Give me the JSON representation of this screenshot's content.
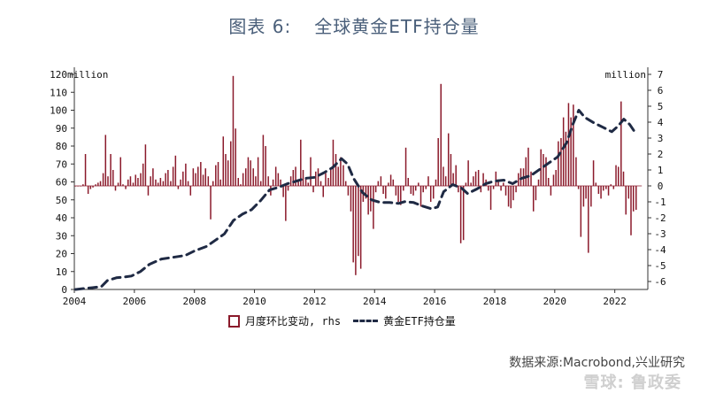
{
  "title_prefix": "图表 6:",
  "title_main": "全球黄金ETF持仓量",
  "left_unit": "million",
  "right_unit": "million",
  "legend": {
    "bar_label": "月度环比变动, rhs",
    "line_label": "黄金ETF持仓量"
  },
  "source": "数据来源:Macrobond,兴业研究",
  "watermark": "雪球: 鲁政委",
  "colors": {
    "bar": "#8b1a2b",
    "line": "#1f2a44",
    "title": "#4a5f7a"
  },
  "chart_data": {
    "type": "bar+line",
    "x_ticks": [
      "2004",
      "2006",
      "2008",
      "2010",
      "2012",
      "2014",
      "2016",
      "2018",
      "2020",
      "2022"
    ],
    "x_range": [
      2004,
      2023.1
    ],
    "left_axis": {
      "ticks": [
        0,
        10,
        20,
        30,
        40,
        50,
        60,
        70,
        80,
        90,
        100,
        110,
        120
      ],
      "range": [
        0,
        120
      ]
    },
    "right_axis": {
      "ticks": [
        -6,
        -5,
        -4,
        -3,
        -2,
        -1,
        0,
        1,
        2,
        3,
        4,
        5,
        6,
        7
      ],
      "range": [
        -6.5,
        7
      ]
    },
    "series": [
      {
        "name": "月度环比变动, rhs",
        "kind": "bar",
        "axis": "right",
        "points": [
          [
            2004.04,
            0.0
          ],
          [
            2004.12,
            0.0
          ],
          [
            2004.21,
            0.0
          ],
          [
            2004.29,
            0.1
          ],
          [
            2004.37,
            2.0
          ],
          [
            2004.46,
            -0.5
          ],
          [
            2004.54,
            -0.2
          ],
          [
            2004.62,
            -0.1
          ],
          [
            2004.71,
            0.1
          ],
          [
            2004.79,
            0.2
          ],
          [
            2004.87,
            0.3
          ],
          [
            2004.96,
            0.8
          ],
          [
            2005.04,
            3.2
          ],
          [
            2005.12,
            0.6
          ],
          [
            2005.21,
            2.0
          ],
          [
            2005.29,
            1.0
          ],
          [
            2005.37,
            -0.3
          ],
          [
            2005.46,
            0.2
          ],
          [
            2005.54,
            1.8
          ],
          [
            2005.62,
            0.1
          ],
          [
            2005.71,
            -0.2
          ],
          [
            2005.79,
            0.4
          ],
          [
            2005.87,
            0.6
          ],
          [
            2005.96,
            0.2
          ],
          [
            2006.04,
            0.7
          ],
          [
            2006.12,
            0.5
          ],
          [
            2006.21,
            0.8
          ],
          [
            2006.29,
            1.4
          ],
          [
            2006.37,
            2.6
          ],
          [
            2006.46,
            -0.6
          ],
          [
            2006.54,
            0.6
          ],
          [
            2006.62,
            1.1
          ],
          [
            2006.71,
            0.4
          ],
          [
            2006.79,
            0.2
          ],
          [
            2006.87,
            0.5
          ],
          [
            2006.96,
            0.3
          ],
          [
            2007.04,
            0.8
          ],
          [
            2007.12,
            1.0
          ],
          [
            2007.21,
            0.3
          ],
          [
            2007.29,
            1.2
          ],
          [
            2007.37,
            1.9
          ],
          [
            2007.46,
            -0.2
          ],
          [
            2007.54,
            0.4
          ],
          [
            2007.62,
            0.9
          ],
          [
            2007.71,
            1.4
          ],
          [
            2007.79,
            0.3
          ],
          [
            2007.87,
            -0.6
          ],
          [
            2007.96,
            1.1
          ],
          [
            2008.04,
            0.8
          ],
          [
            2008.12,
            1.2
          ],
          [
            2008.21,
            1.5
          ],
          [
            2008.29,
            0.7
          ],
          [
            2008.37,
            1.1
          ],
          [
            2008.46,
            0.6
          ],
          [
            2008.54,
            -2.1
          ],
          [
            2008.62,
            0.3
          ],
          [
            2008.71,
            1.3
          ],
          [
            2008.79,
            1.5
          ],
          [
            2008.87,
            0.4
          ],
          [
            2008.96,
            3.1
          ],
          [
            2009.04,
            2.0
          ],
          [
            2009.12,
            1.6
          ],
          [
            2009.21,
            2.8
          ],
          [
            2009.29,
            6.9
          ],
          [
            2009.37,
            3.6
          ],
          [
            2009.46,
            0.5
          ],
          [
            2009.54,
            0.1
          ],
          [
            2009.62,
            0.8
          ],
          [
            2009.71,
            1.1
          ],
          [
            2009.79,
            1.8
          ],
          [
            2009.87,
            1.6
          ],
          [
            2009.96,
            1.1
          ],
          [
            2010.04,
            0.6
          ],
          [
            2010.12,
            1.8
          ],
          [
            2010.21,
            0.3
          ],
          [
            2010.29,
            3.2
          ],
          [
            2010.37,
            2.5
          ],
          [
            2010.46,
            0.6
          ],
          [
            2010.54,
            -0.6
          ],
          [
            2010.62,
            0.4
          ],
          [
            2010.71,
            1.2
          ],
          [
            2010.79,
            0.8
          ],
          [
            2010.87,
            0.4
          ],
          [
            2010.96,
            -0.7
          ],
          [
            2011.04,
            -2.2
          ],
          [
            2011.12,
            -0.3
          ],
          [
            2011.21,
            0.6
          ],
          [
            2011.29,
            1.0
          ],
          [
            2011.37,
            1.2
          ],
          [
            2011.46,
            0.4
          ],
          [
            2011.54,
            2.9
          ],
          [
            2011.62,
            1.0
          ],
          [
            2011.71,
            0.5
          ],
          [
            2011.79,
            0.2
          ],
          [
            2011.87,
            1.8
          ],
          [
            2011.96,
            -0.4
          ],
          [
            2012.04,
            0.9
          ],
          [
            2012.12,
            1.1
          ],
          [
            2012.21,
            0.3
          ],
          [
            2012.29,
            -0.7
          ],
          [
            2012.37,
            0.8
          ],
          [
            2012.46,
            0.5
          ],
          [
            2012.54,
            1.0
          ],
          [
            2012.62,
            2.9
          ],
          [
            2012.71,
            2.0
          ],
          [
            2012.79,
            1.2
          ],
          [
            2012.87,
            1.8
          ],
          [
            2012.96,
            1.3
          ],
          [
            2013.04,
            0.3
          ],
          [
            2013.12,
            -0.6
          ],
          [
            2013.21,
            -1.6
          ],
          [
            2013.29,
            -4.8
          ],
          [
            2013.37,
            -5.6
          ],
          [
            2013.46,
            -4.4
          ],
          [
            2013.54,
            -5.2
          ],
          [
            2013.62,
            -1.0
          ],
          [
            2013.71,
            -0.8
          ],
          [
            2013.79,
            -1.8
          ],
          [
            2013.87,
            -1.6
          ],
          [
            2013.96,
            -2.7
          ],
          [
            2014.04,
            -0.4
          ],
          [
            2014.12,
            0.3
          ],
          [
            2014.21,
            0.6
          ],
          [
            2014.29,
            -0.5
          ],
          [
            2014.37,
            -0.8
          ],
          [
            2014.46,
            0.2
          ],
          [
            2014.54,
            0.7
          ],
          [
            2014.62,
            0.4
          ],
          [
            2014.71,
            -0.6
          ],
          [
            2014.79,
            -1.0
          ],
          [
            2014.87,
            -1.2
          ],
          [
            2014.96,
            -0.3
          ],
          [
            2015.04,
            2.4
          ],
          [
            2015.12,
            0.5
          ],
          [
            2015.21,
            -0.5
          ],
          [
            2015.29,
            -0.6
          ],
          [
            2015.37,
            -0.3
          ],
          [
            2015.46,
            0.2
          ],
          [
            2015.54,
            -1.3
          ],
          [
            2015.62,
            -0.4
          ],
          [
            2015.71,
            -0.2
          ],
          [
            2015.79,
            0.6
          ],
          [
            2015.87,
            -1.0
          ],
          [
            2015.96,
            -0.8
          ],
          [
            2016.04,
            0.4
          ],
          [
            2016.12,
            3.0
          ],
          [
            2016.21,
            6.4
          ],
          [
            2016.29,
            1.2
          ],
          [
            2016.37,
            0.6
          ],
          [
            2016.46,
            3.3
          ],
          [
            2016.54,
            2.0
          ],
          [
            2016.62,
            0.8
          ],
          [
            2016.71,
            1.3
          ],
          [
            2016.79,
            -0.4
          ],
          [
            2016.87,
            -3.6
          ],
          [
            2016.96,
            -3.4
          ],
          [
            2017.04,
            0.2
          ],
          [
            2017.12,
            1.6
          ],
          [
            2017.21,
            0.2
          ],
          [
            2017.29,
            0.6
          ],
          [
            2017.37,
            0.9
          ],
          [
            2017.46,
            1.0
          ],
          [
            2017.54,
            -0.4
          ],
          [
            2017.62,
            0.8
          ],
          [
            2017.71,
            0.4
          ],
          [
            2017.79,
            -0.3
          ],
          [
            2017.87,
            -1.5
          ],
          [
            2017.96,
            -0.2
          ],
          [
            2018.04,
            0.9
          ],
          [
            2018.12,
            0.4
          ],
          [
            2018.21,
            -0.3
          ],
          [
            2018.29,
            0.2
          ],
          [
            2018.37,
            -0.6
          ],
          [
            2018.46,
            -1.3
          ],
          [
            2018.54,
            -1.4
          ],
          [
            2018.62,
            -0.9
          ],
          [
            2018.71,
            -0.4
          ],
          [
            2018.79,
            0.8
          ],
          [
            2018.87,
            1.1
          ],
          [
            2018.96,
            1.1
          ],
          [
            2019.04,
            1.8
          ],
          [
            2019.12,
            2.4
          ],
          [
            2019.21,
            0.9
          ],
          [
            2019.29,
            -1.6
          ],
          [
            2019.37,
            -0.9
          ],
          [
            2019.46,
            0.4
          ],
          [
            2019.54,
            2.3
          ],
          [
            2019.62,
            2.0
          ],
          [
            2019.71,
            1.8
          ],
          [
            2019.79,
            0.5
          ],
          [
            2019.87,
            -0.6
          ],
          [
            2019.96,
            0.7
          ],
          [
            2020.04,
            1.0
          ],
          [
            2020.12,
            2.8
          ],
          [
            2020.21,
            3.0
          ],
          [
            2020.29,
            4.3
          ],
          [
            2020.37,
            3.4
          ],
          [
            2020.46,
            5.2
          ],
          [
            2020.54,
            4.3
          ],
          [
            2020.62,
            5.1
          ],
          [
            2020.71,
            1.8
          ],
          [
            2020.79,
            -0.2
          ],
          [
            2020.87,
            -3.2
          ],
          [
            2020.96,
            -1.3
          ],
          [
            2021.04,
            -0.8
          ],
          [
            2021.12,
            -4.2
          ],
          [
            2021.21,
            -1.3
          ],
          [
            2021.29,
            1.6
          ],
          [
            2021.37,
            0.2
          ],
          [
            2021.46,
            -0.5
          ],
          [
            2021.54,
            -0.8
          ],
          [
            2021.62,
            -0.3
          ],
          [
            2021.71,
            -0.2
          ],
          [
            2021.79,
            -0.6
          ],
          [
            2021.87,
            0.1
          ],
          [
            2021.96,
            -0.2
          ],
          [
            2022.04,
            1.3
          ],
          [
            2022.12,
            1.2
          ],
          [
            2022.21,
            5.3
          ],
          [
            2022.29,
            0.9
          ],
          [
            2022.37,
            -1.8
          ],
          [
            2022.46,
            -0.8
          ],
          [
            2022.54,
            -3.1
          ],
          [
            2022.62,
            -1.6
          ],
          [
            2022.71,
            -1.5
          ]
        ]
      },
      {
        "name": "黄金ETF持仓量",
        "kind": "line",
        "axis": "left",
        "points": [
          [
            2004.04,
            0.0
          ],
          [
            2004.3,
            0.5
          ],
          [
            2004.6,
            1.0
          ],
          [
            2004.9,
            1.6
          ],
          [
            2005.1,
            5.0
          ],
          [
            2005.4,
            6.5
          ],
          [
            2005.7,
            7.0
          ],
          [
            2005.9,
            7.5
          ],
          [
            2006.2,
            10.0
          ],
          [
            2006.5,
            14.0
          ],
          [
            2006.9,
            17.0
          ],
          [
            2007.3,
            18.0
          ],
          [
            2007.7,
            19.0
          ],
          [
            2008.0,
            21.5
          ],
          [
            2008.4,
            24.0
          ],
          [
            2008.7,
            27.5
          ],
          [
            2009.0,
            31.0
          ],
          [
            2009.3,
            38.5
          ],
          [
            2009.6,
            42.0
          ],
          [
            2009.9,
            44.5
          ],
          [
            2010.2,
            49.5
          ],
          [
            2010.5,
            55.5
          ],
          [
            2010.8,
            57.0
          ],
          [
            2011.1,
            59.0
          ],
          [
            2011.4,
            60.5
          ],
          [
            2011.7,
            62.0
          ],
          [
            2012.0,
            62.5
          ],
          [
            2012.3,
            65.0
          ],
          [
            2012.6,
            68.0
          ],
          [
            2012.9,
            73.0
          ],
          [
            2013.1,
            70.0
          ],
          [
            2013.3,
            62.0
          ],
          [
            2013.6,
            54.0
          ],
          [
            2013.9,
            50.0
          ],
          [
            2014.2,
            48.5
          ],
          [
            2014.5,
            48.5
          ],
          [
            2014.8,
            48.0
          ],
          [
            2015.0,
            49.0
          ],
          [
            2015.3,
            48.5
          ],
          [
            2015.6,
            46.5
          ],
          [
            2015.9,
            45.0
          ],
          [
            2016.1,
            46.0
          ],
          [
            2016.3,
            54.5
          ],
          [
            2016.6,
            58.5
          ],
          [
            2016.9,
            56.5
          ],
          [
            2017.1,
            53.5
          ],
          [
            2017.4,
            56.0
          ],
          [
            2017.7,
            59.0
          ],
          [
            2018.0,
            60.5
          ],
          [
            2018.3,
            61.0
          ],
          [
            2018.6,
            59.0
          ],
          [
            2018.9,
            62.0
          ],
          [
            2019.2,
            63.5
          ],
          [
            2019.5,
            67.0
          ],
          [
            2019.8,
            70.5
          ],
          [
            2020.1,
            74.0
          ],
          [
            2020.4,
            82.0
          ],
          [
            2020.6,
            92.0
          ],
          [
            2020.8,
            100.0
          ],
          [
            2021.0,
            96.0
          ],
          [
            2021.3,
            93.0
          ],
          [
            2021.6,
            90.5
          ],
          [
            2021.9,
            88.0
          ],
          [
            2022.1,
            91.0
          ],
          [
            2022.3,
            95.0
          ],
          [
            2022.5,
            92.0
          ],
          [
            2022.7,
            87.0
          ]
        ]
      }
    ]
  }
}
